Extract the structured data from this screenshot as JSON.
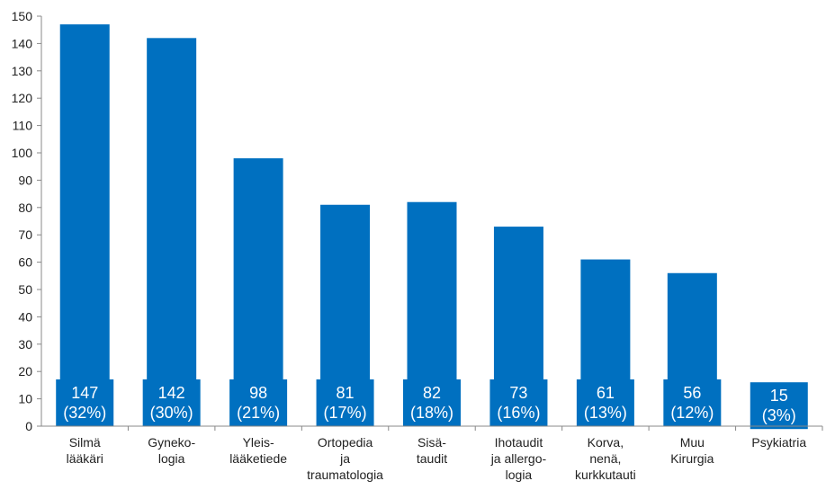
{
  "chart_data": {
    "type": "bar",
    "title": "",
    "xlabel": "",
    "ylabel": "",
    "ylim": [
      0,
      150
    ],
    "yticks": [
      0,
      10,
      20,
      30,
      40,
      50,
      60,
      70,
      80,
      90,
      100,
      110,
      120,
      130,
      140,
      150
    ],
    "grid": false,
    "bar_color": "#0070C0",
    "categories": [
      [
        "Silmä",
        "lääkäri"
      ],
      [
        "Gyneko-",
        "logia"
      ],
      [
        "Yleis-",
        "lääketiede"
      ],
      [
        "Ortopedia",
        "ja",
        "traumatologia"
      ],
      [
        "Sisä-",
        "taudit"
      ],
      [
        "Ihotaudit",
        "ja allergo-",
        "logia"
      ],
      [
        "Korva,",
        "nenä,",
        "kurkkutauti"
      ],
      [
        "Muu",
        "Kirurgia"
      ],
      [
        "Psykiatria"
      ]
    ],
    "values": [
      147,
      142,
      98,
      81,
      82,
      73,
      61,
      56,
      15
    ],
    "data_labels": [
      [
        "147",
        "(32%)"
      ],
      [
        "142",
        "(30%)"
      ],
      [
        "98",
        "(21%)"
      ],
      [
        "81",
        "(17%)"
      ],
      [
        "82",
        "(18%)"
      ],
      [
        "73",
        "(16%)"
      ],
      [
        "61",
        "(13%)"
      ],
      [
        "56",
        "(12%)"
      ],
      [
        "15",
        "(3%)"
      ]
    ]
  }
}
